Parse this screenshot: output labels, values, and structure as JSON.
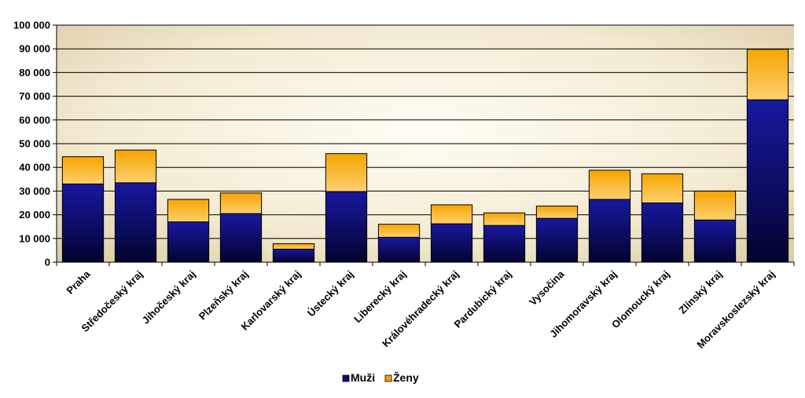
{
  "chart_data": {
    "type": "bar",
    "stacked": true,
    "title": "",
    "xlabel": "",
    "ylabel": "",
    "ylim": [
      0,
      100000
    ],
    "yticks": [
      0,
      10000,
      20000,
      30000,
      40000,
      50000,
      60000,
      70000,
      80000,
      90000,
      100000
    ],
    "ytick_labels": [
      "0",
      "10 000",
      "20 000",
      "30 000",
      "40 000",
      "50 000",
      "60 000",
      "70 000",
      "80 000",
      "90 000",
      "100 000"
    ],
    "grid": true,
    "legend_position": "bottom",
    "categories": [
      "Praha",
      "Středočeský kraj",
      "Jihočeský kraj",
      "Plzeňský kraj",
      "Karlovarský kraj",
      "Ústecký kraj",
      "Liberecký kraj",
      "Královéhradecký kraj",
      "Pardubický kraj",
      "Vysočina",
      "Jihomoravský kraj",
      "Olomoucký kraj",
      "Zlínský kraj",
      "Moravskoslezský kraj"
    ],
    "series": [
      {
        "name": "Muži",
        "color": "#0b0b7a",
        "values": [
          33000,
          33500,
          17000,
          20500,
          5500,
          29800,
          10500,
          16200,
          15500,
          18500,
          26500,
          25000,
          17800,
          68500
        ]
      },
      {
        "name": "Ženy",
        "color": "#f5a000",
        "values": [
          11500,
          13800,
          9500,
          8700,
          2300,
          16000,
          5500,
          8000,
          5300,
          5200,
          12300,
          12300,
          12200,
          21300
        ]
      }
    ]
  }
}
